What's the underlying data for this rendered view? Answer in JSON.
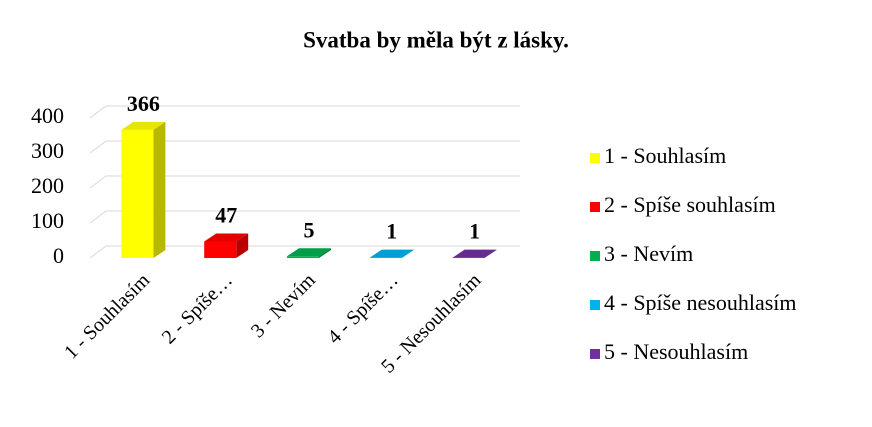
{
  "chart_data": {
    "type": "bar3d",
    "title": "Svatba by měla být z lásky.",
    "categories": [
      "1 - Souhlasím",
      "2 - Spíše…",
      "3 - Nevím",
      "4 - Spíše…",
      "5 - Nesouhlasím"
    ],
    "legend": [
      "1 - Souhlasím",
      "2 - Spíše souhlasím",
      "3 - Nevím",
      "4 - Spíše nesouhlasím",
      "5 - Nesouhlasím"
    ],
    "values": [
      366,
      47,
      5,
      1,
      1
    ],
    "colors": [
      "#ffff00",
      "#ff0000",
      "#00b050",
      "#00b0f0",
      "#7030a0"
    ],
    "ylim": [
      0,
      400
    ],
    "yticks": [
      0,
      100,
      200,
      300,
      400
    ],
    "grid": true,
    "legend_position": "right"
  }
}
